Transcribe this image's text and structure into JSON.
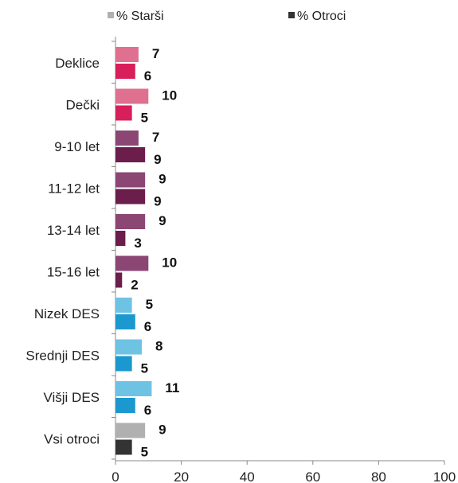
{
  "chart_data": {
    "type": "bar",
    "orientation": "horizontal",
    "categories": [
      "Deklice",
      "Dečki",
      "9-10 let",
      "11-12 let",
      "13-14 let",
      "15-16 let",
      "Nizek DES",
      "Srednji DES",
      "Višji DES",
      "Vsi otroci"
    ],
    "series": [
      {
        "name": "% Starši",
        "values": [
          7,
          10,
          7,
          9,
          9,
          10,
          5,
          8,
          11,
          9
        ]
      },
      {
        "name": "% Otroci",
        "values": [
          6,
          5,
          9,
          9,
          3,
          2,
          6,
          5,
          6,
          5
        ]
      }
    ],
    "xlim": [
      0,
      100
    ],
    "xticks": [
      0,
      20,
      40,
      60,
      80,
      100
    ],
    "legend_position": "top",
    "legend_colors": [
      "#b0b0b0",
      "#333333"
    ],
    "bar_colors": [
      [
        "#e07090",
        "#d81e5b"
      ],
      [
        "#e07090",
        "#d81e5b"
      ],
      [
        "#8b4674",
        "#6b1d4c"
      ],
      [
        "#8b4674",
        "#6b1d4c"
      ],
      [
        "#8b4674",
        "#6b1d4c"
      ],
      [
        "#8b4674",
        "#6b1d4c"
      ],
      [
        "#6ec3e4",
        "#1b98d0"
      ],
      [
        "#6ec3e4",
        "#1b98d0"
      ],
      [
        "#6ec3e4",
        "#1b98d0"
      ],
      [
        "#b0b0b0",
        "#333333"
      ]
    ],
    "grid": false
  }
}
